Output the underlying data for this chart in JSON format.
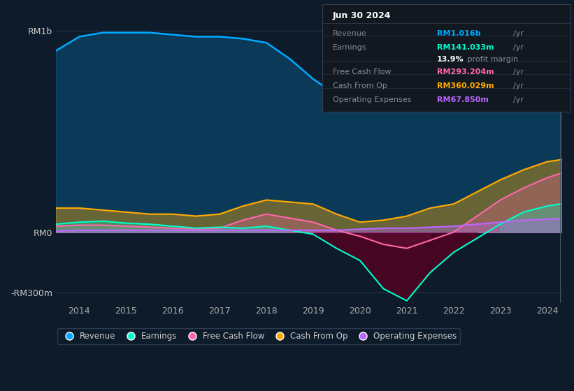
{
  "bg_color": "#0d1b2a",
  "plot_bg_color": "#0d1b2a",
  "years": [
    2013.5,
    2014.0,
    2014.5,
    2015.0,
    2015.5,
    2016.0,
    2016.5,
    2017.0,
    2017.5,
    2018.0,
    2018.5,
    2019.0,
    2019.5,
    2020.0,
    2020.5,
    2021.0,
    2021.5,
    2022.0,
    2022.5,
    2023.0,
    2023.5,
    2024.0,
    2024.3
  ],
  "revenue": [
    900,
    970,
    990,
    990,
    990,
    980,
    970,
    970,
    960,
    940,
    860,
    760,
    680,
    630,
    620,
    640,
    660,
    660,
    710,
    760,
    840,
    950,
    1016
  ],
  "earnings": [
    40,
    50,
    55,
    45,
    40,
    30,
    20,
    25,
    20,
    30,
    10,
    -10,
    -80,
    -140,
    -280,
    -340,
    -200,
    -100,
    -30,
    40,
    100,
    130,
    141
  ],
  "free_cash_flow": [
    30,
    35,
    35,
    30,
    25,
    20,
    15,
    20,
    60,
    90,
    70,
    50,
    10,
    -20,
    -60,
    -80,
    -40,
    0,
    80,
    160,
    220,
    270,
    293
  ],
  "cash_from_op": [
    120,
    120,
    110,
    100,
    90,
    90,
    80,
    90,
    130,
    160,
    150,
    140,
    90,
    50,
    60,
    80,
    120,
    140,
    200,
    260,
    310,
    350,
    360
  ],
  "operating_expenses": [
    5,
    10,
    10,
    10,
    10,
    10,
    10,
    10,
    10,
    10,
    10,
    10,
    10,
    15,
    20,
    20,
    25,
    30,
    40,
    50,
    60,
    65,
    68
  ],
  "colors": {
    "revenue": "#00aaff",
    "earnings": "#00ffcc",
    "free_cash_flow": "#ff66aa",
    "cash_from_op": "#ffaa00",
    "operating_expenses": "#bb66ff"
  },
  "info_box_title": "Jun 30 2024",
  "info_box_bg": "#111820",
  "info_box_border": "#333d4d",
  "xticks": [
    2014,
    2015,
    2016,
    2017,
    2018,
    2019,
    2020,
    2021,
    2022,
    2023,
    2024
  ],
  "ylim": [
    -350,
    1100
  ],
  "ytick_positions": [
    -300,
    0,
    1000
  ],
  "ytick_labels": [
    "-RM300m",
    "RM0",
    "RM1b"
  ]
}
